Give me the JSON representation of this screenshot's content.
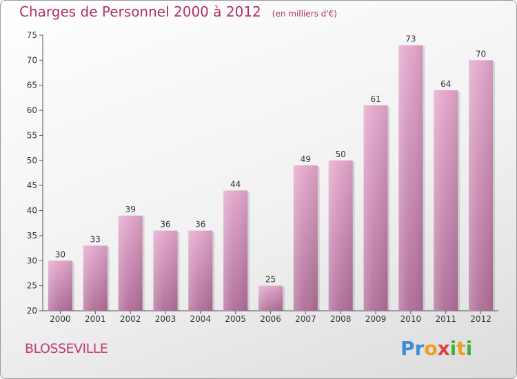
{
  "header": {
    "title": "Charges de Personnel 2000 à 2012",
    "subtitle": "(en milliers d'€)"
  },
  "footer": {
    "town": "BLOSSEVILLE",
    "logo": "Proxiti"
  },
  "colors": {
    "bar_top": "#e3a6cc",
    "bar_bottom": "#b06e98",
    "title": "#b0306a",
    "town": "#c23a78"
  },
  "chart_data": {
    "type": "bar",
    "title": "Charges de Personnel 2000 à 2012",
    "subtitle": "(en milliers d'€)",
    "xlabel": "",
    "ylabel": "",
    "categories": [
      "2000",
      "2001",
      "2002",
      "2003",
      "2004",
      "2005",
      "2006",
      "2007",
      "2008",
      "2009",
      "2010",
      "2011",
      "2012"
    ],
    "values": [
      30,
      33,
      39,
      36,
      36,
      44,
      25,
      49,
      50,
      61,
      73,
      64,
      70
    ],
    "ylim": [
      20,
      75
    ],
    "yticks": [
      20,
      25,
      30,
      35,
      40,
      45,
      50,
      55,
      60,
      65,
      70,
      75
    ],
    "grid": false,
    "data_labels": true
  }
}
